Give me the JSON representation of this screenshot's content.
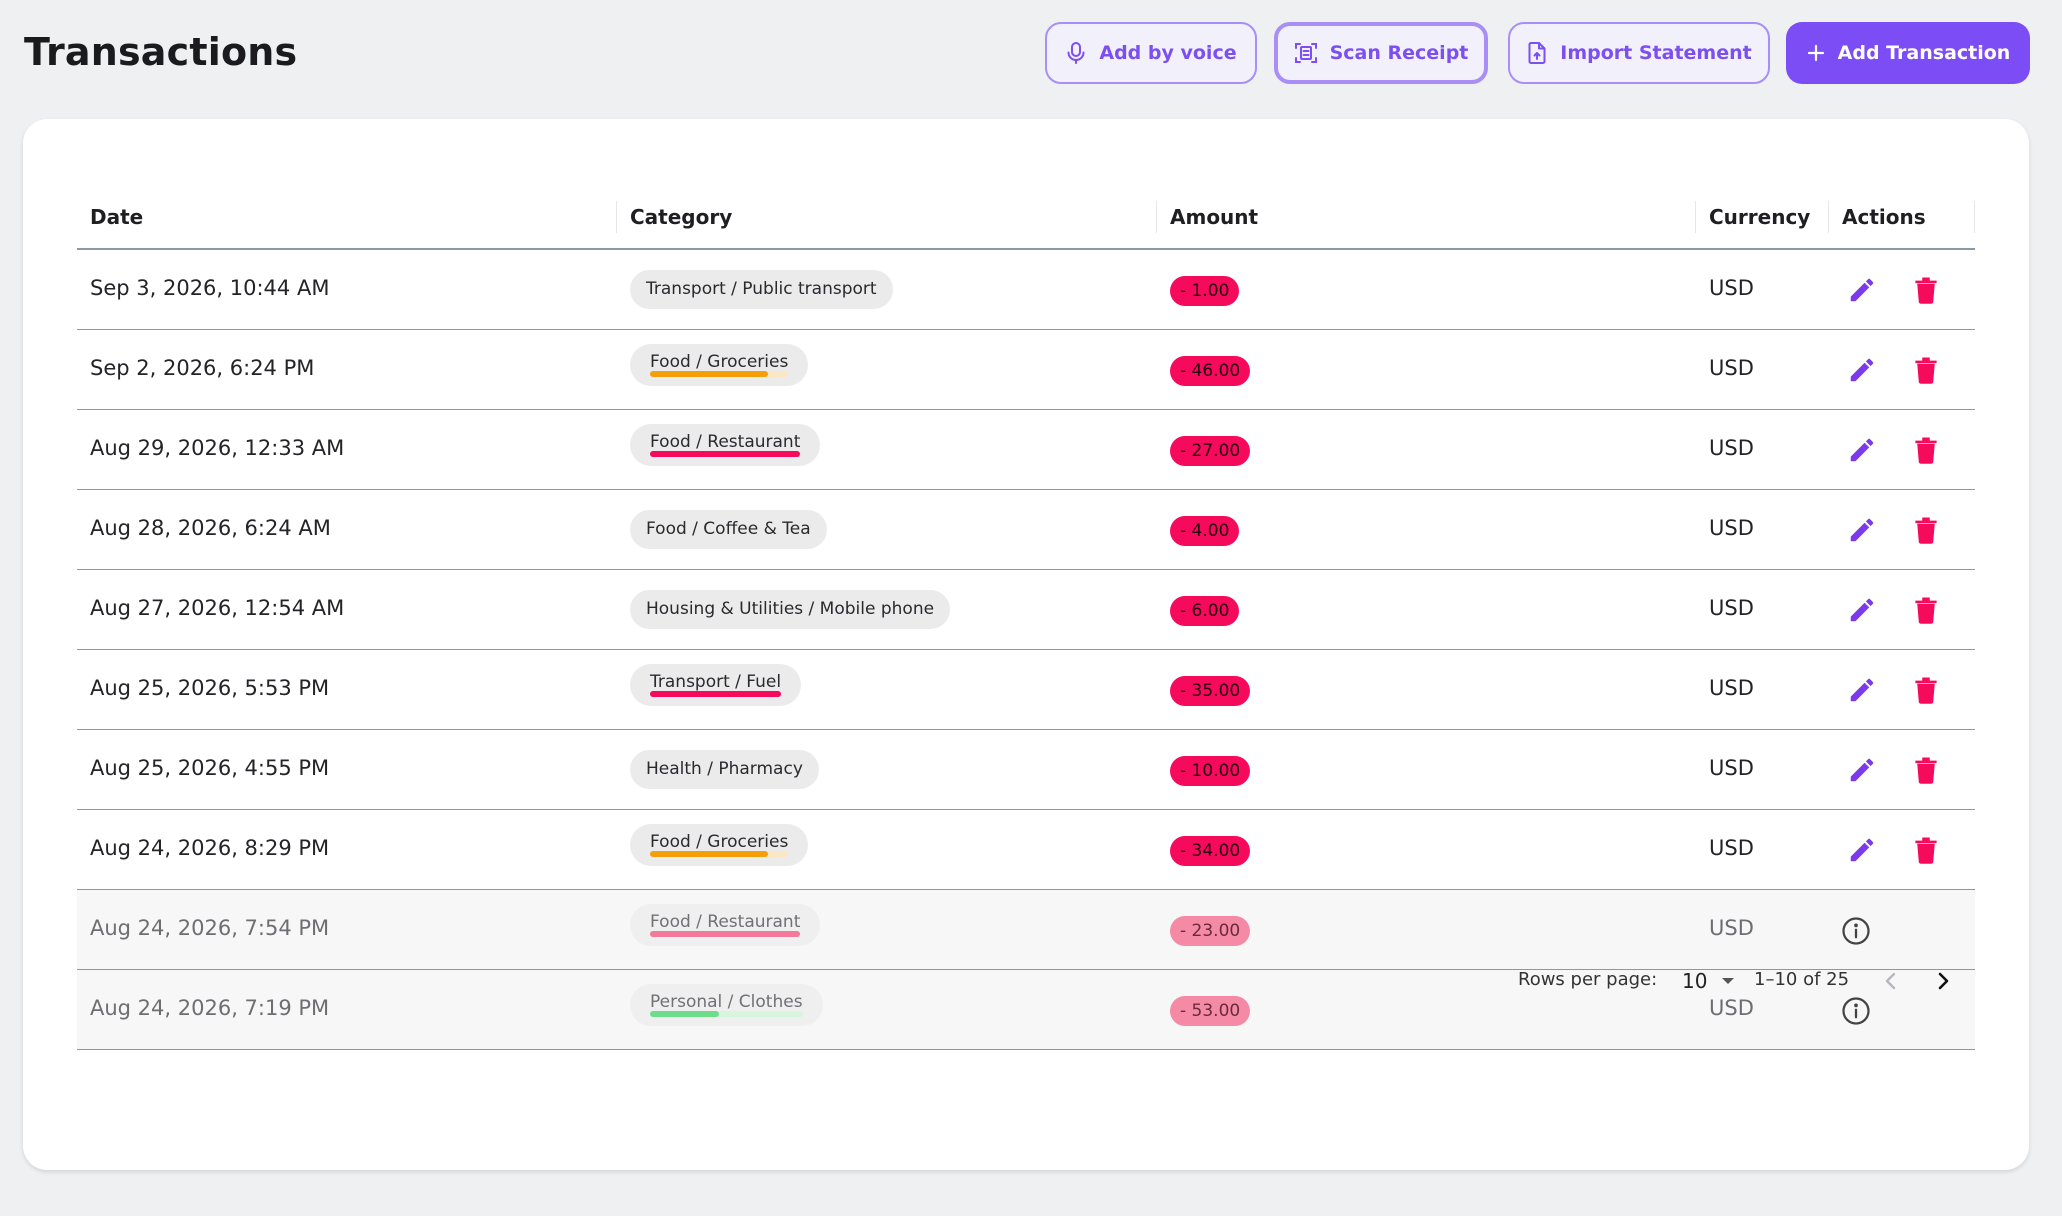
{
  "page": {
    "title": "Transactions"
  },
  "toolbar": {
    "voice_label": "Add by voice",
    "scan_label": "Scan Receipt",
    "import_label": "Import Statement",
    "add_label": "Add Transaction"
  },
  "table": {
    "columns": [
      "Date",
      "Category",
      "Amount",
      "Currency",
      "Actions"
    ],
    "rows": [
      {
        "date": "Sep 3, 2026, 10:44 AM",
        "category": "Transport / Public transport",
        "amount": "- 1.00",
        "currency": "USD",
        "editable": true,
        "budget": null
      },
      {
        "date": "Sep 2, 2026, 6:24 PM",
        "category": "Food / Groceries",
        "amount": "- 46.00",
        "currency": "USD",
        "editable": true,
        "budget": {
          "fraction": 0.85,
          "color": "#f59e0b",
          "track": "#fde6c3"
        }
      },
      {
        "date": "Aug 29, 2026, 12:33 AM",
        "category": "Food / Restaurant",
        "amount": "- 27.00",
        "currency": "USD",
        "editable": true,
        "budget": {
          "fraction": 1.0,
          "color": "#f50a5c",
          "track": "#fbc5d6"
        }
      },
      {
        "date": "Aug 28, 2026, 6:24 AM",
        "category": "Food / Coffee & Tea",
        "amount": "- 4.00",
        "currency": "USD",
        "editable": true,
        "budget": null
      },
      {
        "date": "Aug 27, 2026, 12:54 AM",
        "category": "Housing & Utilities / Mobile phone",
        "amount": "- 6.00",
        "currency": "USD",
        "editable": true,
        "budget": null
      },
      {
        "date": "Aug 25, 2026, 5:53 PM",
        "category": "Transport / Fuel",
        "amount": "- 35.00",
        "currency": "USD",
        "editable": true,
        "budget": {
          "fraction": 1.0,
          "color": "#f50a5c",
          "track": "#fbc5d6"
        }
      },
      {
        "date": "Aug 25, 2026, 4:55 PM",
        "category": "Health / Pharmacy",
        "amount": "- 10.00",
        "currency": "USD",
        "editable": true,
        "budget": null
      },
      {
        "date": "Aug 24, 2026, 8:29 PM",
        "category": "Food / Groceries",
        "amount": "- 34.00",
        "currency": "USD",
        "editable": true,
        "budget": {
          "fraction": 0.85,
          "color": "#f59e0b",
          "track": "#fde6c3"
        }
      },
      {
        "date": "Aug 24, 2026, 7:54 PM",
        "category": "Food / Restaurant",
        "amount": "- 23.00",
        "currency": "USD",
        "editable": false,
        "budget": {
          "fraction": 1.0,
          "color": "#f4789a",
          "track": "#fbd0dc"
        }
      },
      {
        "date": "Aug 24, 2026, 7:19 PM",
        "category": "Personal / Clothes",
        "amount": "- 53.00",
        "currency": "USD",
        "editable": false,
        "budget": {
          "fraction": 0.45,
          "color": "#6fdc8c",
          "track": "#d5f5de"
        }
      }
    ]
  },
  "pagination": {
    "rows_per_page_label": "Rows per page:",
    "rows_per_page": "10",
    "range": "1–10 of 25"
  },
  "colors": {
    "accent": "#7c4df4",
    "danger": "#f50a5c"
  }
}
